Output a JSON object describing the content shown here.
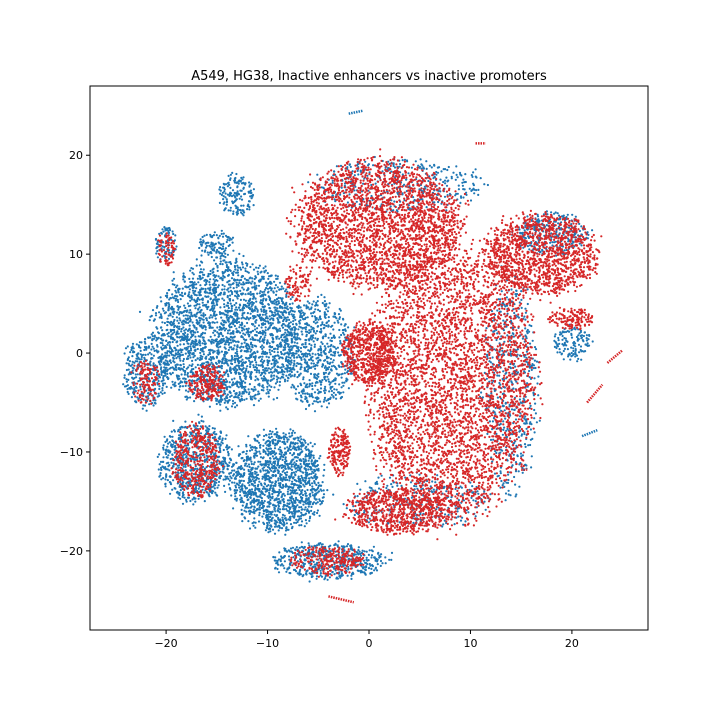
{
  "chart_data": {
    "type": "scatter",
    "title": "A549, HG38, Inactive enhancers vs inactive promoters",
    "xlabel": "",
    "ylabel": "",
    "xlim": [
      -27.5,
      27.5
    ],
    "ylim": [
      -28,
      27
    ],
    "x_ticks": [
      -20,
      -10,
      0,
      10,
      20
    ],
    "x_tick_labels": [
      "−20",
      "−10",
      "0",
      "10",
      "20"
    ],
    "y_ticks": [
      20,
      10,
      0,
      -10,
      -20
    ],
    "y_tick_labels": [
      "20",
      "10",
      "0",
      "−10",
      "−20"
    ],
    "grid": false,
    "legend": "none",
    "series": [
      {
        "color": "#1f77b4",
        "values_note": "",
        "clusters": [
          {
            "cx": -14,
            "cy": 2,
            "rx": 8,
            "ry": 8,
            "n": 2600
          },
          {
            "cx": -9,
            "cy": -13,
            "rx": 5,
            "ry": 5.5,
            "n": 1400
          },
          {
            "cx": -17,
            "cy": -11,
            "rx": 4,
            "ry": 4.5,
            "n": 700
          },
          {
            "cx": -5,
            "cy": 0,
            "rx": 4,
            "ry": 6,
            "n": 700
          },
          {
            "cx": -4,
            "cy": -21,
            "rx": 6,
            "ry": 2,
            "n": 500
          },
          {
            "cx": -22,
            "cy": -2,
            "rx": 2.5,
            "ry": 4,
            "n": 300
          },
          {
            "cx": -13,
            "cy": 16,
            "rx": 2,
            "ry": 2.5,
            "n": 150
          },
          {
            "cx": -20,
            "cy": 11,
            "rx": 1.2,
            "ry": 2,
            "n": 90
          },
          {
            "cx": -15,
            "cy": 11,
            "rx": 2,
            "ry": 1.5,
            "n": 100
          },
          {
            "cx": 14,
            "cy": -3,
            "rx": 3,
            "ry": 12,
            "n": 500
          },
          {
            "cx": 18,
            "cy": 12,
            "rx": 4,
            "ry": 2.5,
            "n": 300
          },
          {
            "cx": 3,
            "cy": 17,
            "rx": 9,
            "ry": 3,
            "n": 400
          },
          {
            "cx": 5,
            "cy": -15,
            "rx": 8,
            "ry": 3,
            "n": 300
          },
          {
            "cx": 20,
            "cy": 1,
            "rx": 2,
            "ry": 2,
            "n": 120
          }
        ]
      },
      {
        "color": "#d62728",
        "values_note": "",
        "clusters": [
          {
            "cx": 8,
            "cy": -3,
            "rx": 9,
            "ry": 15,
            "n": 4000
          },
          {
            "cx": 1,
            "cy": 13,
            "rx": 9,
            "ry": 7,
            "n": 2600
          },
          {
            "cx": 17,
            "cy": 10,
            "rx": 6,
            "ry": 4.5,
            "n": 1300
          },
          {
            "cx": 0,
            "cy": 0,
            "rx": 3,
            "ry": 3.5,
            "n": 600
          },
          {
            "cx": 3,
            "cy": -16,
            "rx": 6,
            "ry": 2.5,
            "n": 700
          },
          {
            "cx": -17,
            "cy": -11,
            "rx": 2.5,
            "ry": 4,
            "n": 420
          },
          {
            "cx": -3,
            "cy": -10,
            "rx": 1.2,
            "ry": 2.5,
            "n": 180
          },
          {
            "cx": -16,
            "cy": -3,
            "rx": 2,
            "ry": 2,
            "n": 220
          },
          {
            "cx": -4,
            "cy": -21,
            "rx": 4,
            "ry": 1.6,
            "n": 260
          },
          {
            "cx": -20,
            "cy": 10.5,
            "rx": 1,
            "ry": 1.8,
            "n": 70
          },
          {
            "cx": 20,
            "cy": 3.5,
            "rx": 2.5,
            "ry": 1.2,
            "n": 140
          },
          {
            "cx": -22,
            "cy": -3,
            "rx": 1.5,
            "ry": 2.5,
            "n": 120
          },
          {
            "cx": -7,
            "cy": 7,
            "rx": 1.5,
            "ry": 2,
            "n": 90
          }
        ]
      }
    ],
    "small_features": [
      {
        "x1": 23.5,
        "y1": -1,
        "x2": 25,
        "y2": 0.3,
        "color": "#d62728"
      },
      {
        "x1": 21.5,
        "y1": -5,
        "x2": 23,
        "y2": -3.2,
        "color": "#d62728"
      },
      {
        "x1": 21,
        "y1": -8.4,
        "x2": 22.5,
        "y2": -7.8,
        "color": "#1f77b4"
      },
      {
        "x1": -2,
        "y1": 24.2,
        "x2": -0.6,
        "y2": 24.5,
        "color": "#1f77b4"
      },
      {
        "x1": -4,
        "y1": -24.6,
        "x2": -1.5,
        "y2": -25.2,
        "color": "#d62728"
      },
      {
        "x1": 10.5,
        "y1": 21.2,
        "x2": 11.5,
        "y2": 21.2,
        "color": "#d62728"
      },
      {
        "x1": 15,
        "y1": -11.8,
        "x2": 15.6,
        "y2": -11.8,
        "color": "#d62728"
      }
    ]
  }
}
